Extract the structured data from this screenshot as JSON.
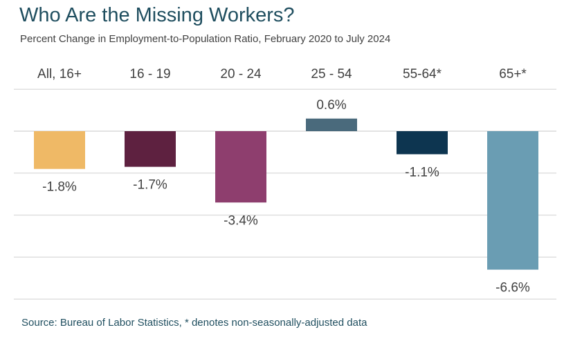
{
  "title": "Who Are the Missing Workers?",
  "subtitle": "Percent Change in Employment-to-Population Ratio, February 2020 to July 2024",
  "source": "Source: Bureau of Labor Statistics, * denotes non-seasonally-adjusted data",
  "chart_data": {
    "type": "bar",
    "categories": [
      "All, 16+",
      "16 - 19",
      "20 - 24",
      "25 - 54",
      "55-64*",
      "65+*"
    ],
    "values": [
      -1.8,
      -1.7,
      -3.4,
      0.6,
      -1.1,
      -6.6
    ],
    "value_labels": [
      "-1.8%",
      "-1.7%",
      "-3.4%",
      "0.6%",
      "-1.1%",
      "-6.6%"
    ],
    "colors": [
      "#efb966",
      "#5e2140",
      "#8e3e6e",
      "#4a6a7c",
      "#0d3550",
      "#6a9db3"
    ],
    "ylim": [
      -8,
      2
    ],
    "gridlines": [
      2,
      0,
      -2,
      -4,
      -6,
      -8
    ],
    "grid": true,
    "legend": "none",
    "category_axis_position": "top"
  }
}
